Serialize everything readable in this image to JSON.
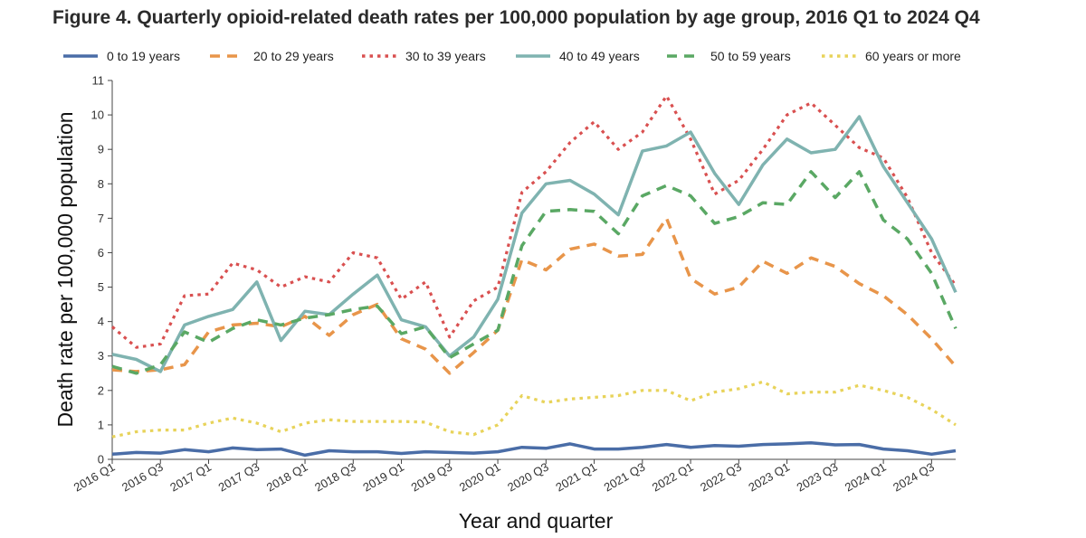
{
  "chart_data": {
    "type": "line",
    "title": "Figure 4. Quarterly opioid-related death rates per 100,000 population by age group, 2016 Q1 to 2024 Q4",
    "xlabel": "Year and quarter",
    "ylabel": "Death rate per 100,000 population",
    "ylim": [
      0,
      11
    ],
    "yticks": [
      0,
      1,
      2,
      3,
      4,
      5,
      6,
      7,
      8,
      9,
      10,
      11
    ],
    "grid": false,
    "legend_position": "top",
    "x": [
      "2016 Q1",
      "2016 Q2",
      "2016 Q3",
      "2016 Q4",
      "2017 Q1",
      "2017 Q2",
      "2017 Q3",
      "2017 Q4",
      "2018 Q1",
      "2018 Q2",
      "2018 Q3",
      "2018 Q4",
      "2019 Q1",
      "2019 Q2",
      "2019 Q3",
      "2019 Q4",
      "2020 Q1",
      "2020 Q2",
      "2020 Q3",
      "2020 Q4",
      "2021 Q1",
      "2021 Q2",
      "2021 Q3",
      "2021 Q4",
      "2022 Q1",
      "2022 Q2",
      "2022 Q3",
      "2022 Q4",
      "2023 Q1",
      "2023 Q2",
      "2023 Q3",
      "2023 Q4",
      "2024 Q1",
      "2024 Q2",
      "2024 Q3",
      "2024 Q4"
    ],
    "tick_labels": [
      "2016 Q1",
      "2016 Q3",
      "2017 Q1",
      "2017 Q3",
      "2018 Q1",
      "2018 Q3",
      "2019 Q1",
      "2019 Q3",
      "2020 Q1",
      "2020 Q3",
      "2021 Q1",
      "2021 Q3",
      "2022 Q1",
      "2022 Q3",
      "2023 Q1",
      "2023 Q3",
      "2024 Q1",
      "2024 Q3"
    ],
    "series": [
      {
        "name": "0 to 19 years",
        "color": "#4a6da7",
        "style": "solid",
        "values": [
          0.15,
          0.2,
          0.18,
          0.28,
          0.22,
          0.33,
          0.28,
          0.3,
          0.12,
          0.25,
          0.22,
          0.22,
          0.17,
          0.22,
          0.2,
          0.18,
          0.22,
          0.35,
          0.32,
          0.45,
          0.3,
          0.3,
          0.35,
          0.43,
          0.35,
          0.4,
          0.38,
          0.43,
          0.45,
          0.48,
          0.42,
          0.43,
          0.3,
          0.25,
          0.15,
          0.25
        ]
      },
      {
        "name": "20 to 29 years",
        "color": "#e8954a",
        "style": "dashed",
        "values": [
          2.6,
          2.55,
          2.6,
          2.75,
          3.7,
          3.9,
          3.95,
          3.85,
          4.15,
          3.6,
          4.2,
          4.5,
          3.5,
          3.2,
          2.5,
          3.1,
          3.75,
          5.8,
          5.5,
          6.1,
          6.25,
          5.9,
          5.95,
          7.0,
          5.25,
          4.8,
          5.0,
          5.75,
          5.4,
          5.85,
          5.6,
          5.1,
          4.75,
          4.2,
          3.5,
          2.7
        ]
      },
      {
        "name": "30 to 39 years",
        "color": "#d95050",
        "style": "dotted",
        "values": [
          3.85,
          3.25,
          3.35,
          4.75,
          4.8,
          5.7,
          5.5,
          5.0,
          5.3,
          5.15,
          6.0,
          5.85,
          4.65,
          5.15,
          3.55,
          4.6,
          5.0,
          7.75,
          8.35,
          9.2,
          9.8,
          9.0,
          9.5,
          10.55,
          9.3,
          7.7,
          8.1,
          9.0,
          10.0,
          10.35,
          9.7,
          9.05,
          8.75,
          7.6,
          6.0,
          5.05
        ]
      },
      {
        "name": "40 to 49 years",
        "color": "#7fb3b0",
        "style": "solid",
        "values": [
          3.05,
          2.9,
          2.55,
          3.9,
          4.15,
          4.35,
          5.15,
          3.45,
          4.3,
          4.2,
          4.8,
          5.35,
          4.05,
          3.85,
          3.0,
          3.55,
          4.65,
          7.15,
          8.0,
          8.1,
          7.7,
          7.1,
          8.95,
          9.1,
          9.5,
          8.3,
          7.4,
          8.55,
          9.3,
          8.9,
          9.0,
          9.95,
          8.5,
          7.45,
          6.4,
          4.85
        ]
      },
      {
        "name": "50 to 59 years",
        "color": "#5aa864",
        "style": "dashed",
        "values": [
          2.7,
          2.5,
          2.75,
          3.7,
          3.4,
          3.8,
          4.05,
          3.9,
          4.1,
          4.2,
          4.35,
          4.45,
          3.65,
          3.85,
          2.95,
          3.35,
          3.75,
          6.2,
          7.2,
          7.25,
          7.2,
          6.55,
          7.65,
          7.95,
          7.65,
          6.85,
          7.05,
          7.45,
          7.4,
          8.35,
          7.6,
          8.35,
          6.95,
          6.4,
          5.4,
          3.8
        ]
      },
      {
        "name": "60 years or more",
        "color": "#e8d35a",
        "style": "dotted",
        "values": [
          0.65,
          0.8,
          0.85,
          0.85,
          1.05,
          1.2,
          1.05,
          0.8,
          1.05,
          1.15,
          1.1,
          1.1,
          1.1,
          1.08,
          0.8,
          0.72,
          1.0,
          1.85,
          1.65,
          1.75,
          1.8,
          1.85,
          2.0,
          2.0,
          1.7,
          1.95,
          2.05,
          2.25,
          1.9,
          1.95,
          1.95,
          2.15,
          2.0,
          1.8,
          1.45,
          1.0
        ]
      }
    ]
  }
}
